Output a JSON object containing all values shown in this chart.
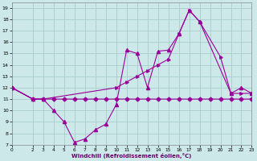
{
  "xlabel": "Windchill (Refroidissement éolien,°C)",
  "bg_color": "#cce8e8",
  "grid_color": "#aacccc",
  "line_color": "#990099",
  "xlim": [
    0,
    23
  ],
  "ylim": [
    7,
    19.5
  ],
  "yticks": [
    7,
    8,
    9,
    10,
    11,
    12,
    13,
    14,
    15,
    16,
    17,
    18,
    19
  ],
  "xticks": [
    0,
    2,
    3,
    4,
    5,
    6,
    7,
    8,
    9,
    10,
    11,
    12,
    13,
    14,
    15,
    16,
    17,
    18,
    19,
    20,
    21,
    22,
    23
  ],
  "s1_x": [
    0,
    2,
    3,
    4,
    5,
    6,
    7,
    8,
    9,
    10,
    11,
    12,
    13,
    14,
    15,
    16,
    17,
    18,
    19,
    20,
    21,
    22,
    23
  ],
  "s1_y": [
    12,
    11,
    11,
    11,
    11,
    11,
    11,
    11,
    11,
    11,
    11,
    11,
    11,
    11,
    11,
    11,
    11,
    11,
    11,
    11,
    11,
    11,
    11
  ],
  "s2_x": [
    0,
    2,
    3,
    4,
    5,
    6,
    7,
    8,
    9,
    10,
    11,
    12,
    13,
    14,
    15,
    16,
    17,
    18,
    21,
    22,
    23
  ],
  "s2_y": [
    12,
    11,
    11,
    10,
    9,
    7.2,
    7.5,
    8.3,
    8.8,
    10.5,
    15.3,
    15.0,
    12.0,
    15.2,
    15.3,
    16.7,
    18.8,
    17.8,
    11.5,
    12.0,
    11.5
  ],
  "s3_x": [
    0,
    2,
    3,
    10,
    11,
    12,
    13,
    14,
    15,
    16,
    17,
    18,
    20,
    21,
    22,
    23
  ],
  "s3_y": [
    12,
    11,
    11,
    12.0,
    12.5,
    13.0,
    13.5,
    14.0,
    14.5,
    16.7,
    18.8,
    17.8,
    14.7,
    11.5,
    11.5,
    11.5
  ]
}
